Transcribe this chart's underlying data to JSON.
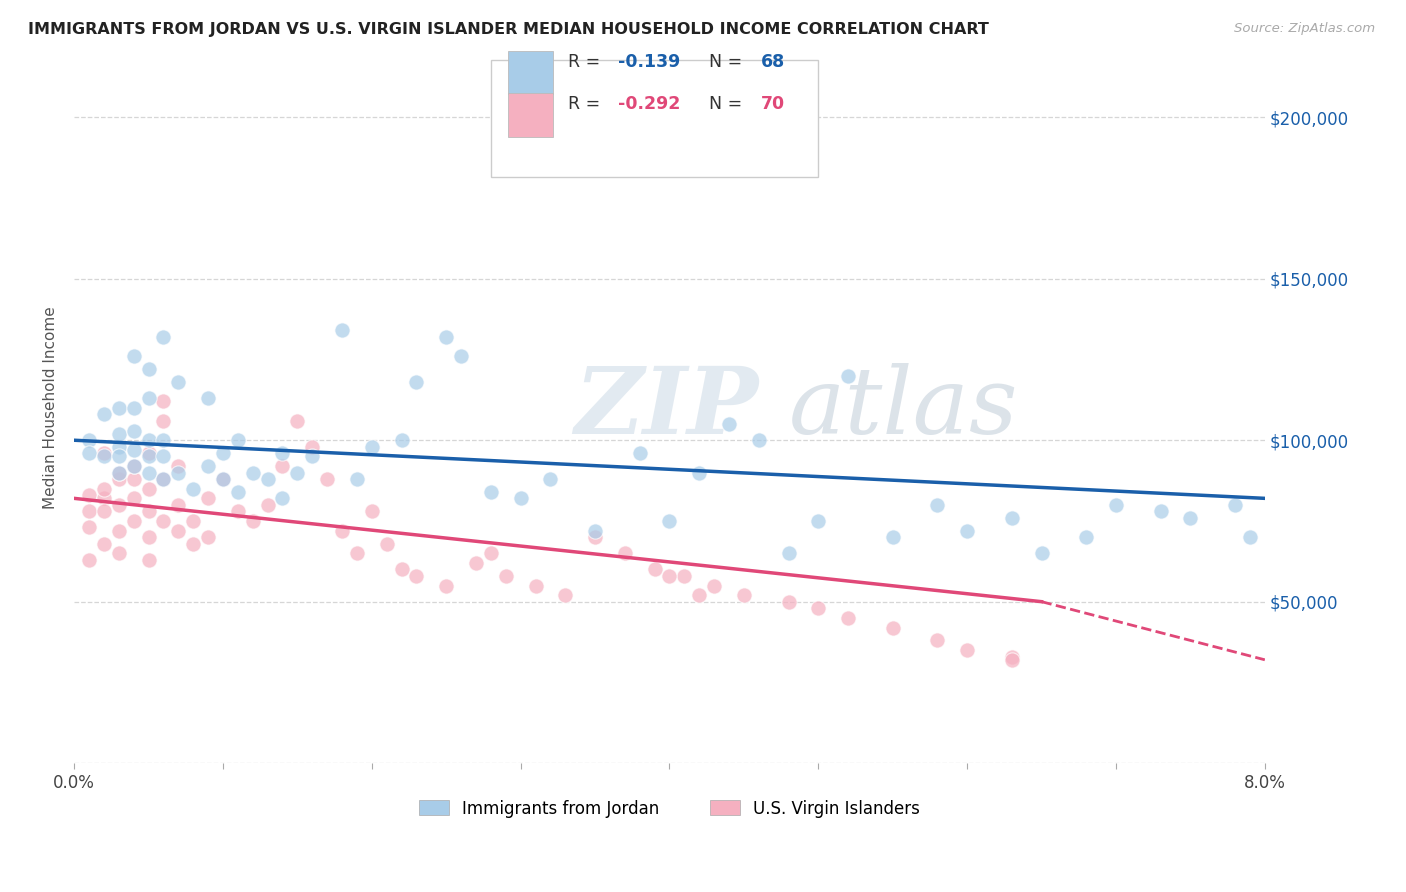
{
  "title": "IMMIGRANTS FROM JORDAN VS U.S. VIRGIN ISLANDER MEDIAN HOUSEHOLD INCOME CORRELATION CHART",
  "source": "Source: ZipAtlas.com",
  "ylabel": "Median Household Income",
  "xlim": [
    0.0,
    0.08
  ],
  "ylim": [
    0,
    220000
  ],
  "yticks": [
    0,
    50000,
    100000,
    150000,
    200000
  ],
  "ytick_labels": [
    "",
    "$50,000",
    "$100,000",
    "$150,000",
    "$200,000"
  ],
  "color_blue": "#a8cce8",
  "color_pink": "#f5b0c0",
  "line_color_blue": "#1a5faa",
  "line_color_pink": "#e04878",
  "text_color_blue": "#1a5faa",
  "text_dark": "#333333",
  "watermark_color": "#c8d8e8",
  "blue_line_y0": 100000,
  "blue_line_y1": 82000,
  "pink_line_solid_x0": 0.0,
  "pink_line_solid_x1": 0.065,
  "pink_line_y0": 82000,
  "pink_line_y1": 50000,
  "pink_line_dash_x0": 0.065,
  "pink_line_dash_x1": 0.08,
  "pink_line_dash_y0": 50000,
  "pink_line_dash_y1": 32000,
  "blue_x": [
    0.001,
    0.001,
    0.002,
    0.002,
    0.003,
    0.003,
    0.003,
    0.003,
    0.003,
    0.004,
    0.004,
    0.004,
    0.004,
    0.004,
    0.005,
    0.005,
    0.005,
    0.005,
    0.005,
    0.006,
    0.006,
    0.006,
    0.006,
    0.007,
    0.007,
    0.008,
    0.009,
    0.009,
    0.01,
    0.01,
    0.011,
    0.011,
    0.012,
    0.013,
    0.014,
    0.014,
    0.015,
    0.016,
    0.018,
    0.019,
    0.02,
    0.022,
    0.023,
    0.025,
    0.026,
    0.028,
    0.03,
    0.032,
    0.035,
    0.038,
    0.04,
    0.042,
    0.044,
    0.046,
    0.048,
    0.05,
    0.052,
    0.055,
    0.058,
    0.06,
    0.063,
    0.065,
    0.068,
    0.07,
    0.073,
    0.075,
    0.078,
    0.079
  ],
  "blue_y": [
    100000,
    96000,
    95000,
    108000,
    98000,
    102000,
    110000,
    90000,
    95000,
    92000,
    97000,
    103000,
    110000,
    126000,
    90000,
    95000,
    100000,
    113000,
    122000,
    88000,
    95000,
    100000,
    132000,
    90000,
    118000,
    85000,
    92000,
    113000,
    88000,
    96000,
    84000,
    100000,
    90000,
    88000,
    96000,
    82000,
    90000,
    95000,
    134000,
    88000,
    98000,
    100000,
    118000,
    132000,
    126000,
    84000,
    82000,
    88000,
    72000,
    96000,
    75000,
    90000,
    105000,
    100000,
    65000,
    75000,
    120000,
    70000,
    80000,
    72000,
    76000,
    65000,
    70000,
    80000,
    78000,
    76000,
    80000,
    70000
  ],
  "pink_x": [
    0.001,
    0.001,
    0.001,
    0.001,
    0.002,
    0.002,
    0.002,
    0.002,
    0.002,
    0.003,
    0.003,
    0.003,
    0.003,
    0.003,
    0.004,
    0.004,
    0.004,
    0.004,
    0.005,
    0.005,
    0.005,
    0.005,
    0.005,
    0.006,
    0.006,
    0.006,
    0.006,
    0.007,
    0.007,
    0.007,
    0.008,
    0.008,
    0.009,
    0.009,
    0.01,
    0.011,
    0.012,
    0.013,
    0.014,
    0.015,
    0.016,
    0.017,
    0.018,
    0.019,
    0.02,
    0.021,
    0.022,
    0.023,
    0.025,
    0.027,
    0.029,
    0.031,
    0.033,
    0.035,
    0.037,
    0.039,
    0.041,
    0.043,
    0.045,
    0.048,
    0.05,
    0.052,
    0.055,
    0.058,
    0.06,
    0.063,
    0.04,
    0.042,
    0.028,
    0.063
  ],
  "pink_y": [
    83000,
    78000,
    73000,
    63000,
    82000,
    78000,
    85000,
    96000,
    68000,
    72000,
    80000,
    88000,
    90000,
    65000,
    75000,
    82000,
    88000,
    92000,
    70000,
    78000,
    85000,
    96000,
    63000,
    112000,
    106000,
    88000,
    75000,
    72000,
    80000,
    92000,
    68000,
    75000,
    70000,
    82000,
    88000,
    78000,
    75000,
    80000,
    92000,
    106000,
    98000,
    88000,
    72000,
    65000,
    78000,
    68000,
    60000,
    58000,
    55000,
    62000,
    58000,
    55000,
    52000,
    70000,
    65000,
    60000,
    58000,
    55000,
    52000,
    50000,
    48000,
    45000,
    42000,
    38000,
    35000,
    33000,
    58000,
    52000,
    65000,
    32000
  ]
}
